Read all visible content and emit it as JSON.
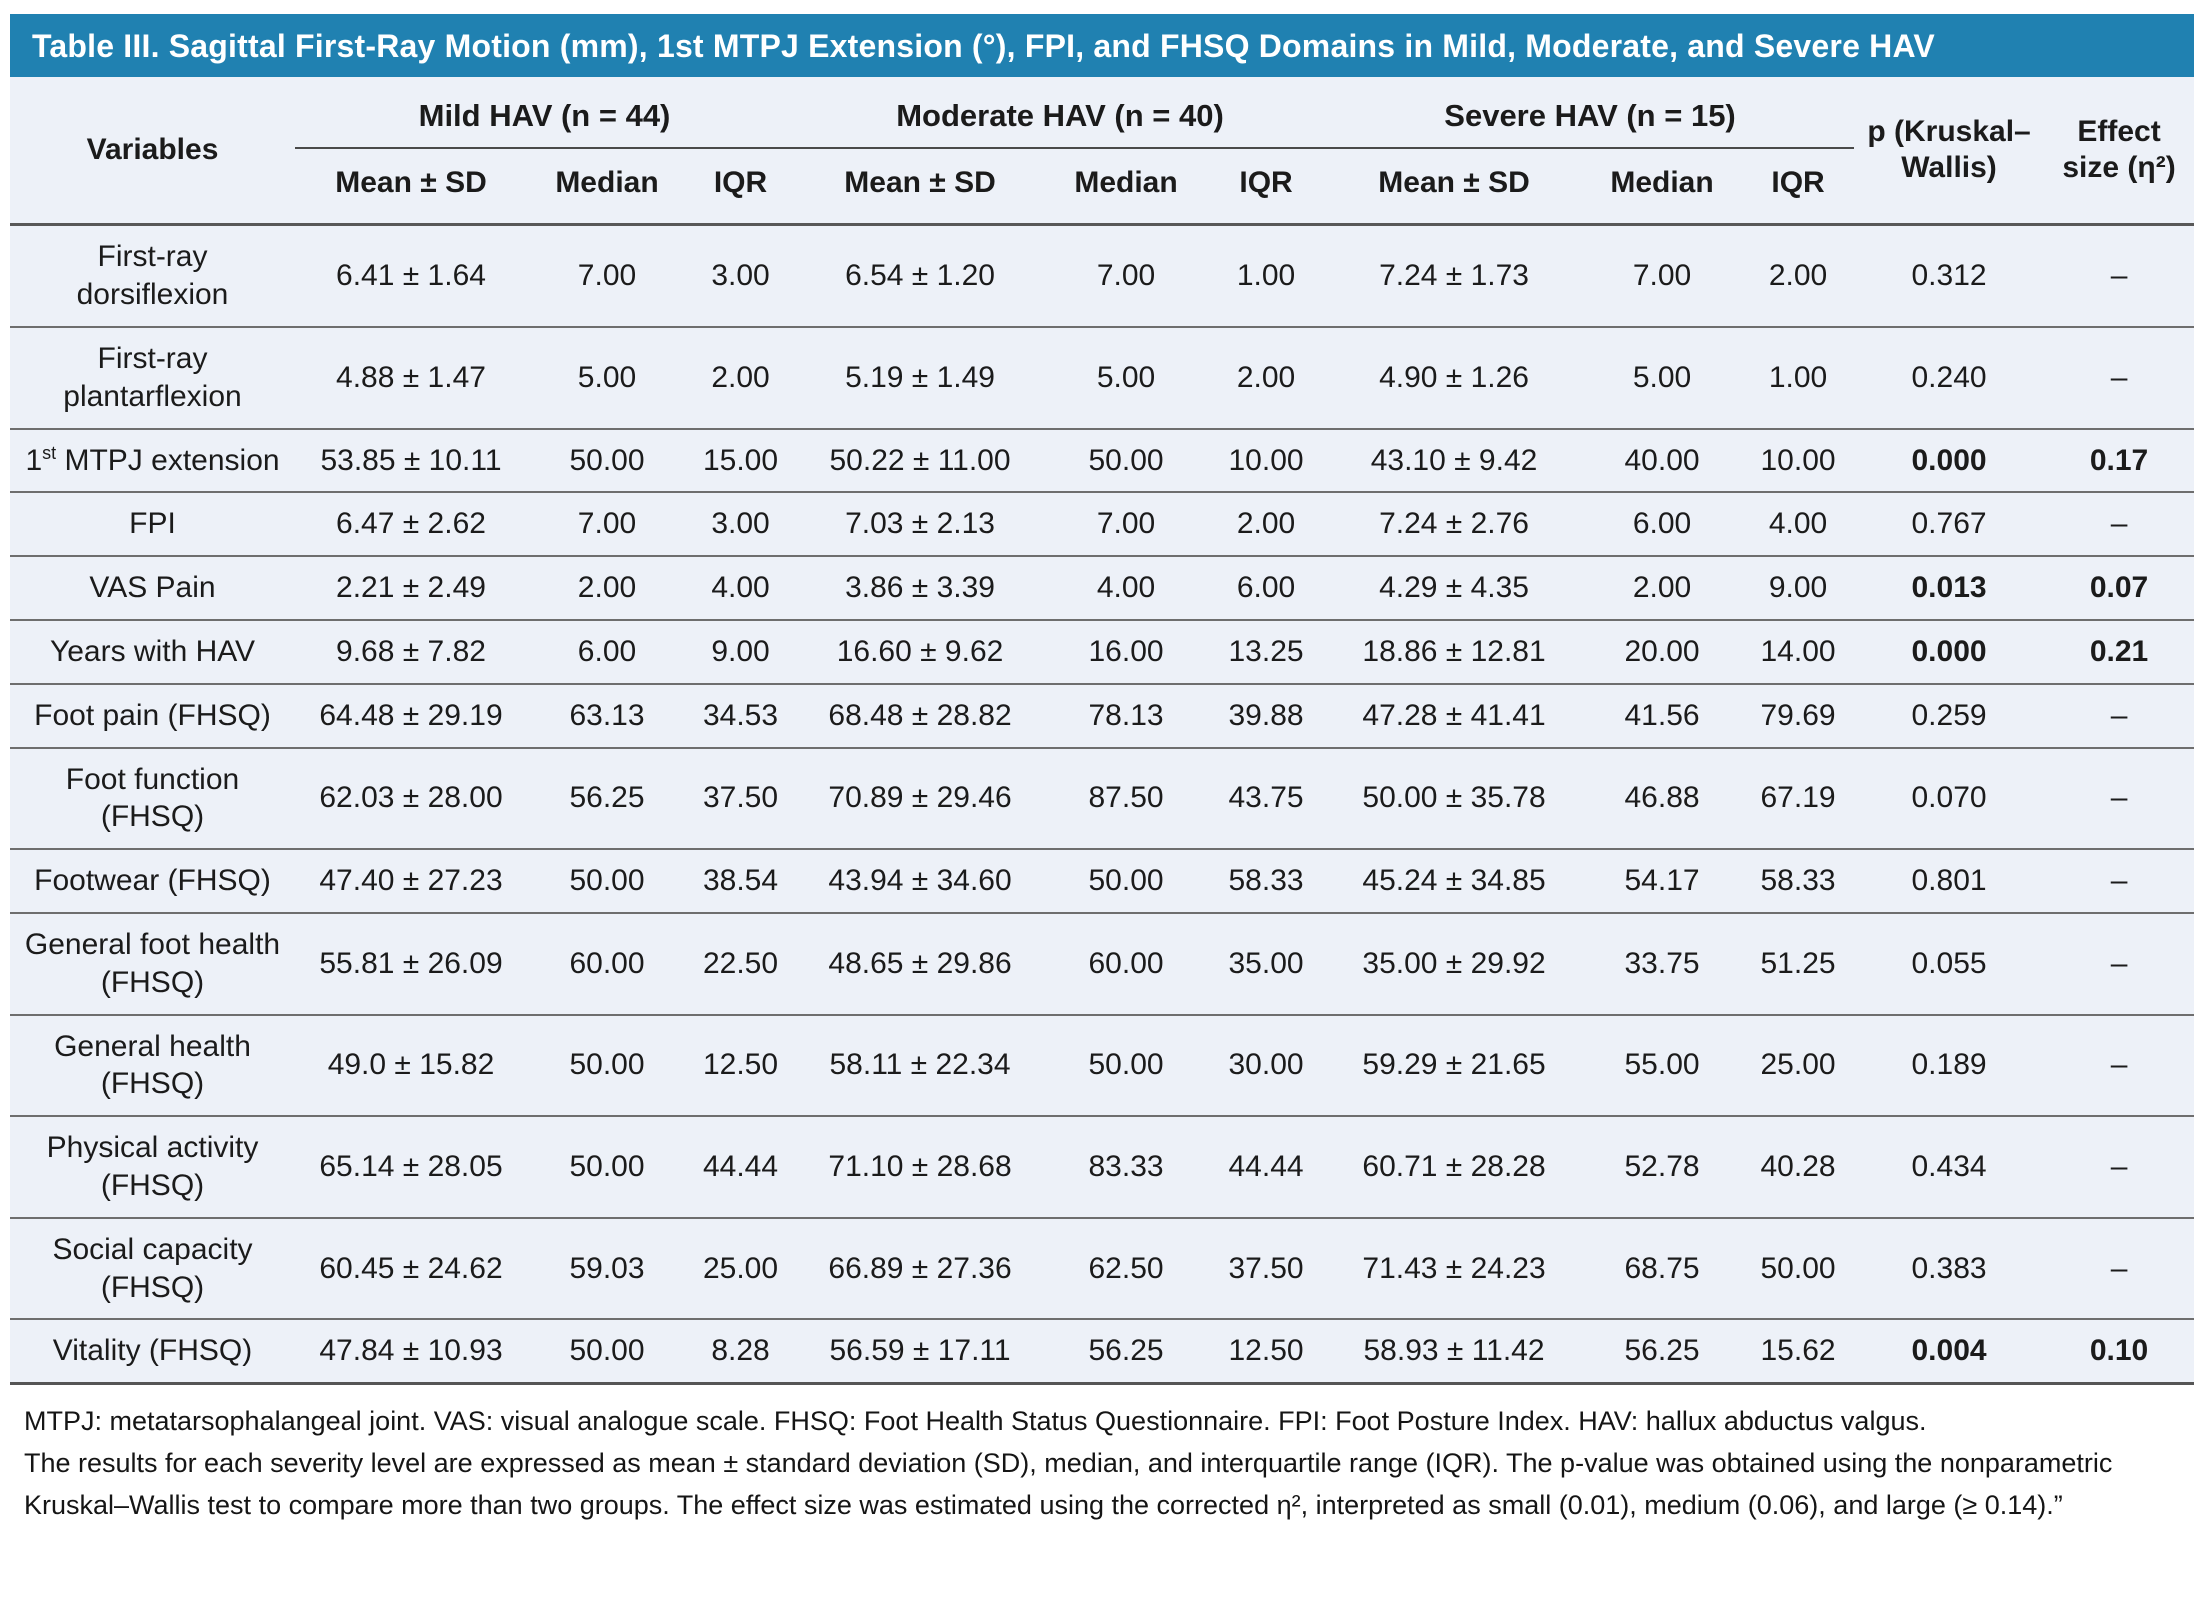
{
  "title": "Table III. Sagittal First-Ray Motion (mm), 1st MTPJ Extension (°), FPI, and FHSQ Domains in Mild, Moderate, and Severe HAV",
  "colors": {
    "title_bar_bg": "#2081b1",
    "title_text": "#ffffff",
    "table_bg": "#edf1f8",
    "rule_dark": "#585858",
    "row_line": "#6e6e6e"
  },
  "table": {
    "variables_header": "Variables",
    "groups": [
      {
        "label": "Mild HAV (n = 44)"
      },
      {
        "label": "Moderate HAV (n = 40)"
      },
      {
        "label": "Severe HAV (n = 15)"
      }
    ],
    "stat_headers": [
      "Mean ± SD",
      "Median",
      "IQR"
    ],
    "p_header": "p (Kruskal–Wallis)",
    "effect_header": "Effect size (η²)",
    "rows": [
      {
        "label": "First-ray dorsiflexion",
        "cells": [
          "6.41 ± 1.64",
          "7.00",
          "3.00",
          "6.54 ± 1.20",
          "7.00",
          "1.00",
          "7.24 ± 1.73",
          "7.00",
          "2.00"
        ],
        "p": "0.312",
        "effect": "–",
        "sig": false
      },
      {
        "label": "First-ray plantarflexion",
        "cells": [
          "4.88 ± 1.47",
          "5.00",
          "2.00",
          "5.19 ± 1.49",
          "5.00",
          "2.00",
          "4.90 ± 1.26",
          "5.00",
          "1.00"
        ],
        "p": "0.240",
        "effect": "–",
        "sig": false
      },
      {
        "label": "1<sup>st</sup> MTPJ extension",
        "cells": [
          "53.85 ± 10.11",
          "50.00",
          "15.00",
          "50.22 ± 11.00",
          "50.00",
          "10.00",
          "43.10 ± 9.42",
          "40.00",
          "10.00"
        ],
        "p": "0.000",
        "effect": "0.17",
        "sig": true
      },
      {
        "label": "FPI",
        "cells": [
          "6.47 ± 2.62",
          "7.00",
          "3.00",
          "7.03 ± 2.13",
          "7.00",
          "2.00",
          "7.24 ± 2.76",
          "6.00",
          "4.00"
        ],
        "p": "0.767",
        "effect": "–",
        "sig": false
      },
      {
        "label": "VAS Pain",
        "cells": [
          "2.21 ± 2.49",
          "2.00",
          "4.00",
          "3.86 ± 3.39",
          "4.00",
          "6.00",
          "4.29 ± 4.35",
          "2.00",
          "9.00"
        ],
        "p": "0.013",
        "effect": "0.07",
        "sig": true
      },
      {
        "label": "Years with HAV",
        "cells": [
          "9.68 ± 7.82",
          "6.00",
          "9.00",
          "16.60 ± 9.62",
          "16.00",
          "13.25",
          "18.86 ± 12.81",
          "20.00",
          "14.00"
        ],
        "p": "0.000",
        "effect": "0.21",
        "sig": true
      },
      {
        "label": "Foot pain (FHSQ)",
        "cells": [
          "64.48 ± 29.19",
          "63.13",
          "34.53",
          "68.48 ± 28.82",
          "78.13",
          "39.88",
          "47.28 ± 41.41",
          "41.56",
          "79.69"
        ],
        "p": "0.259",
        "effect": "–",
        "sig": false
      },
      {
        "label": "Foot function (FHSQ)",
        "cells": [
          "62.03 ± 28.00",
          "56.25",
          "37.50",
          "70.89 ± 29.46",
          "87.50",
          "43.75",
          "50.00 ± 35.78",
          "46.88",
          "67.19"
        ],
        "p": "0.070",
        "effect": "–",
        "sig": false
      },
      {
        "label": "Footwear (FHSQ)",
        "cells": [
          "47.40 ± 27.23",
          "50.00",
          "38.54",
          "43.94 ± 34.60",
          "50.00",
          "58.33",
          "45.24 ± 34.85",
          "54.17",
          "58.33"
        ],
        "p": "0.801",
        "effect": "–",
        "sig": false
      },
      {
        "label": "General foot health (FHSQ)",
        "cells": [
          "55.81 ± 26.09",
          "60.00",
          "22.50",
          "48.65 ± 29.86",
          "60.00",
          "35.00",
          "35.00 ± 29.92",
          "33.75",
          "51.25"
        ],
        "p": "0.055",
        "effect": "–",
        "sig": false
      },
      {
        "label": "General health (FHSQ)",
        "cells": [
          "49.0 ± 15.82",
          "50.00",
          "12.50",
          "58.11 ± 22.34",
          "50.00",
          "30.00",
          "59.29 ± 21.65",
          "55.00",
          "25.00"
        ],
        "p": "0.189",
        "effect": "–",
        "sig": false
      },
      {
        "label": "Physical activity (FHSQ)",
        "cells": [
          "65.14 ± 28.05",
          "50.00",
          "44.44",
          "71.10 ± 28.68",
          "83.33",
          "44.44",
          "60.71 ± 28.28",
          "52.78",
          "40.28"
        ],
        "p": "0.434",
        "effect": "–",
        "sig": false
      },
      {
        "label": "Social capacity (FHSQ)",
        "cells": [
          "60.45 ± 24.62",
          "59.03",
          "25.00",
          "66.89 ± 27.36",
          "62.50",
          "37.50",
          "71.43 ± 24.23",
          "68.75",
          "50.00"
        ],
        "p": "0.383",
        "effect": "–",
        "sig": false
      },
      {
        "label": "Vitality (FHSQ)",
        "cells": [
          "47.84 ± 10.93",
          "50.00",
          "8.28",
          "56.59 ± 17.11",
          "56.25",
          "12.50",
          "58.93 ± 11.42",
          "56.25",
          "15.62"
        ],
        "p": "0.004",
        "effect": "0.10",
        "sig": true
      }
    ]
  },
  "footnotes": [
    "MTPJ: metatarsophalangeal joint. VAS: visual analogue scale. FHSQ: Foot Health Status Questionnaire. FPI: Foot Posture Index. HAV: hallux abductus valgus.",
    "The results for each severity level are expressed as mean ± standard deviation (SD), median, and interquartile range (IQR). The p-value was obtained using the nonparametric Kruskal–Wallis test to compare more than two groups. The effect size was estimated using the corrected η², interpreted as small (0.01), medium (0.06), and large (≥ 0.14).”"
  ]
}
